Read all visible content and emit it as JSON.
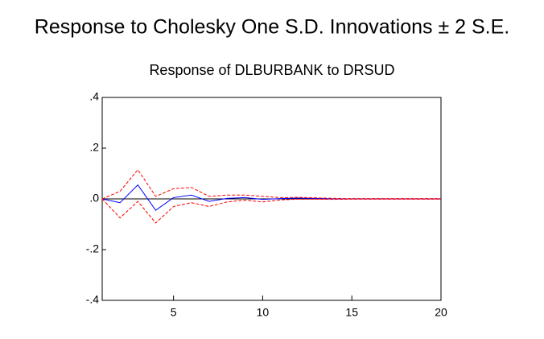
{
  "chart_data": {
    "type": "line",
    "title": "Response to Cholesky One S.D. Innovations ± 2 S.E.",
    "subtitle": "Response of DLBURBANK to DRSUD",
    "x": [
      1,
      2,
      3,
      4,
      5,
      6,
      7,
      8,
      9,
      10,
      11,
      12,
      13,
      14,
      15,
      16,
      17,
      18,
      19,
      20
    ],
    "series": [
      {
        "color": "#0000ff",
        "dashed": false,
        "values": [
          0,
          -0.015,
          0.055,
          -0.045,
          0.005,
          0.015,
          -0.01,
          0.002,
          0.005,
          -0.002,
          0.001,
          0.003,
          0.002,
          0,
          0,
          0,
          0,
          0,
          0,
          0
        ]
      },
      {
        "color": "#ff0000",
        "dashed": true,
        "values": [
          0,
          0.03,
          0.115,
          0.01,
          0.04,
          0.045,
          0.01,
          0.015,
          0.015,
          0.01,
          0.005,
          0.006,
          0.004,
          0.002,
          0.001,
          0.001,
          0.001,
          0.001,
          0.001,
          0.001
        ]
      },
      {
        "color": "#ff0000",
        "dashed": true,
        "values": [
          0,
          -0.075,
          -0.01,
          -0.095,
          -0.03,
          -0.015,
          -0.03,
          -0.012,
          -0.005,
          -0.012,
          -0.004,
          -0.001,
          -0.001,
          -0.002,
          -0.001,
          -0.001,
          -0.001,
          -0.001,
          -0.001,
          -0.001
        ]
      }
    ],
    "xlim": [
      1,
      20
    ],
    "xticks": [
      5,
      10,
      15,
      20
    ],
    "ylim": [
      -0.4,
      0.4
    ],
    "yticks": [
      {
        "value": 0.4,
        "label": ".4"
      },
      {
        "value": 0.2,
        "label": ".2"
      },
      {
        "value": 0,
        "label": ".0"
      },
      {
        "value": -0.2,
        "label": "-.2"
      },
      {
        "value": -0.4,
        "label": "-.4"
      }
    ],
    "zero_line": true
  }
}
